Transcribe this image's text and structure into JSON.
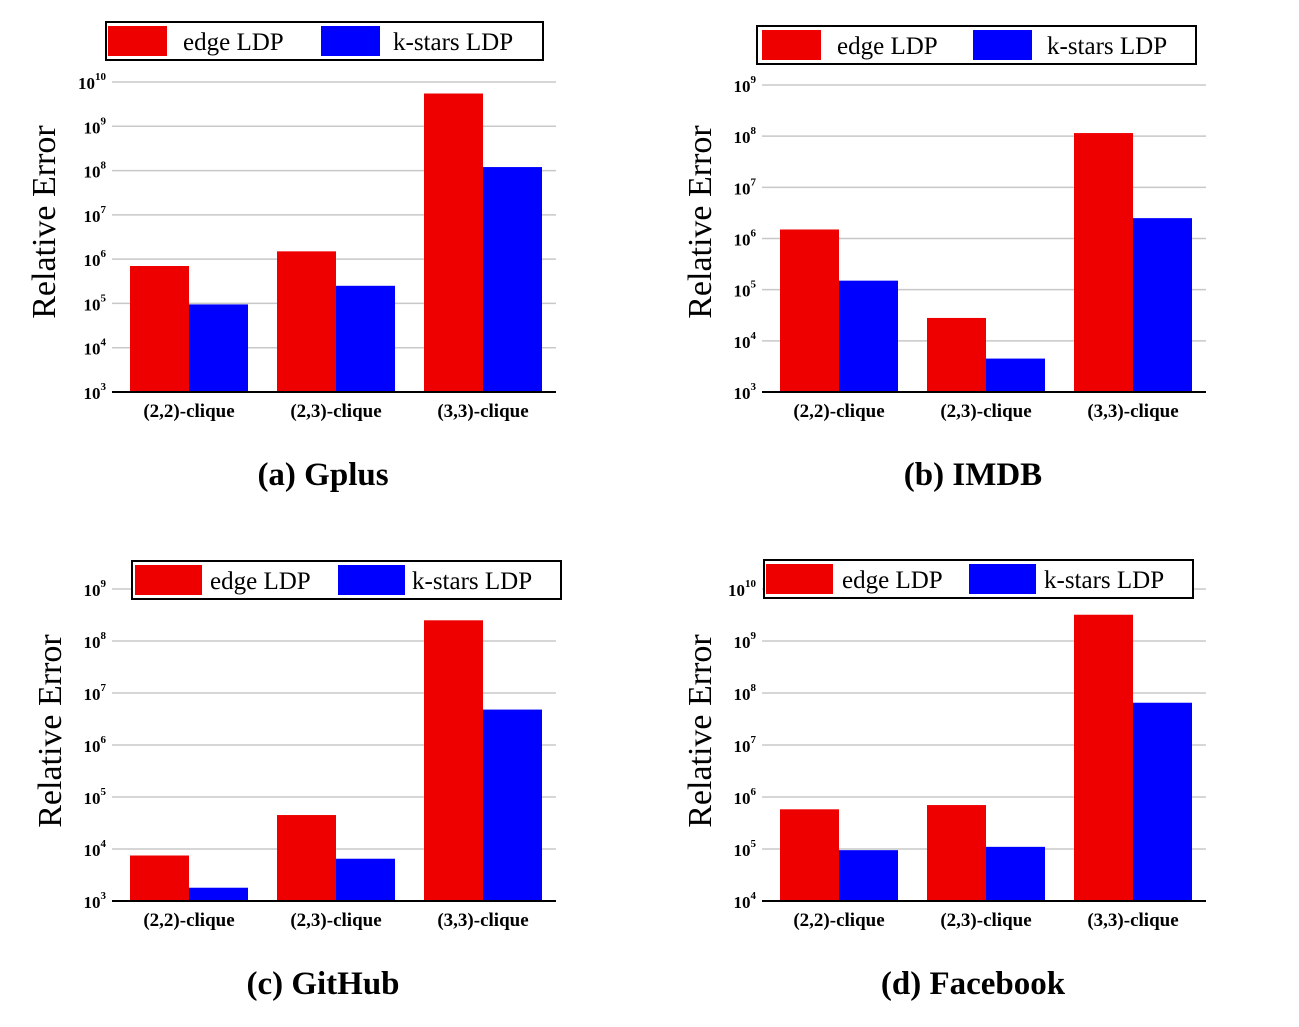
{
  "legend": {
    "series": [
      "edge LDP",
      "k-stars LDP"
    ]
  },
  "colors": {
    "edge LDP": "#ee0000",
    "k-stars LDP": "#0000ff"
  },
  "chart_data": [
    {
      "type": "bar",
      "caption": "(a) Gplus",
      "ylabel": "Relative Error",
      "yscale": "log",
      "ylim_exp": [
        3,
        10
      ],
      "categories": [
        "(2,2)-clique",
        "(2,3)-clique",
        "(3,3)-clique"
      ],
      "series": [
        {
          "name": "edge LDP",
          "values": [
            700000,
            1500000,
            5500000000
          ]
        },
        {
          "name": "k-stars LDP",
          "values": [
            95000,
            250000,
            120000000
          ]
        }
      ]
    },
    {
      "type": "bar",
      "caption": "(b) IMDB",
      "ylabel": "Relative Error",
      "yscale": "log",
      "ylim_exp": [
        3,
        9
      ],
      "categories": [
        "(2,2)-clique",
        "(2,3)-clique",
        "(3,3)-clique"
      ],
      "series": [
        {
          "name": "edge LDP",
          "values": [
            1500000,
            28000,
            115000000
          ]
        },
        {
          "name": "k-stars LDP",
          "values": [
            150000,
            4500,
            2500000
          ]
        }
      ]
    },
    {
      "type": "bar",
      "caption": "(c) GitHub",
      "ylabel": "Relative Error",
      "yscale": "log",
      "ylim_exp": [
        3,
        9
      ],
      "categories": [
        "(2,2)-clique",
        "(2,3)-clique",
        "(3,3)-clique"
      ],
      "series": [
        {
          "name": "edge LDP",
          "values": [
            7500,
            45000,
            250000000
          ]
        },
        {
          "name": "k-stars LDP",
          "values": [
            1800,
            6500,
            4800000
          ]
        }
      ]
    },
    {
      "type": "bar",
      "caption": "(d) Facebook",
      "ylabel": "Relative Error",
      "yscale": "log",
      "ylim_exp": [
        4,
        10
      ],
      "categories": [
        "(2,2)-clique",
        "(2,3)-clique",
        "(3,3)-clique"
      ],
      "series": [
        {
          "name": "edge LDP",
          "values": [
            580000,
            700000,
            3200000000
          ]
        },
        {
          "name": "k-stars LDP",
          "values": [
            95000,
            110000,
            65000000
          ]
        }
      ]
    }
  ]
}
